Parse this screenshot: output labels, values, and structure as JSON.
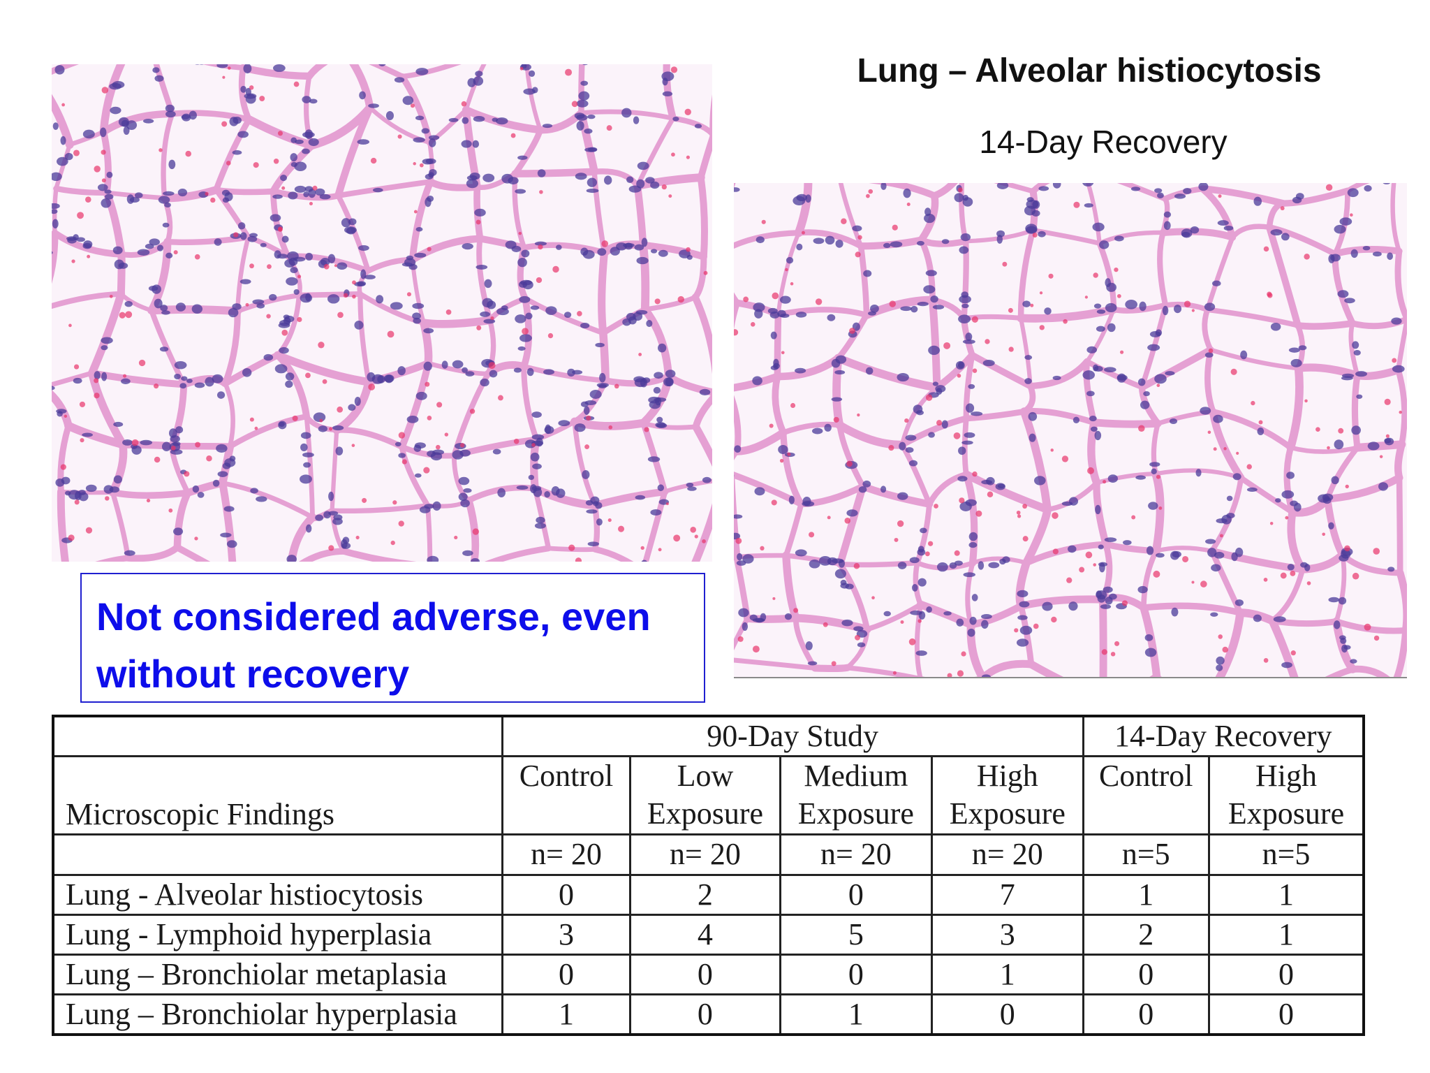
{
  "slide": {
    "title": "Lung – Alveolar histiocytosis",
    "subtitle": "14-Day Recovery",
    "callout": "Not considered adverse, even without recovery"
  },
  "images": {
    "left": "micrograph-lung-tissue-icon",
    "right": "micrograph-lung-tissue-icon"
  },
  "colors": {
    "callout_text": "#0d0dea",
    "callout_border": "#1f1fd0",
    "stain_pink": "#e5a0d3",
    "stain_nuclei": "#4b3b9a",
    "stain_rbc": "#e8336a"
  },
  "table": {
    "group_headers": {
      "study": "90-Day Study",
      "recovery": "14-Day Recovery"
    },
    "findings_header": "Microscopic Findings",
    "columns": [
      {
        "line1": "Control",
        "line2": "",
        "n": "n= 20"
      },
      {
        "line1": "Low",
        "line2": "Exposure",
        "n": "n= 20"
      },
      {
        "line1": "Medium",
        "line2": "Exposure",
        "n": "n= 20"
      },
      {
        "line1": "High",
        "line2": "Exposure",
        "n": "n= 20"
      },
      {
        "line1": "Control",
        "line2": "",
        "n": "n=5"
      },
      {
        "line1": "High",
        "line2": "Exposure",
        "n": "n=5"
      }
    ],
    "rows": [
      {
        "finding": "Lung - Alveolar histiocytosis",
        "values": [
          "0",
          "2",
          "0",
          "7",
          "1",
          "1"
        ]
      },
      {
        "finding": "Lung - Lymphoid hyperplasia",
        "values": [
          "3",
          "4",
          "5",
          "3",
          "2",
          "1"
        ]
      },
      {
        "finding": "Lung – Bronchiolar metaplasia",
        "values": [
          "0",
          "0",
          "0",
          "1",
          "0",
          "0"
        ]
      },
      {
        "finding": "Lung – Bronchiolar hyperplasia",
        "values": [
          "1",
          "0",
          "1",
          "0",
          "0",
          "0"
        ]
      }
    ]
  }
}
